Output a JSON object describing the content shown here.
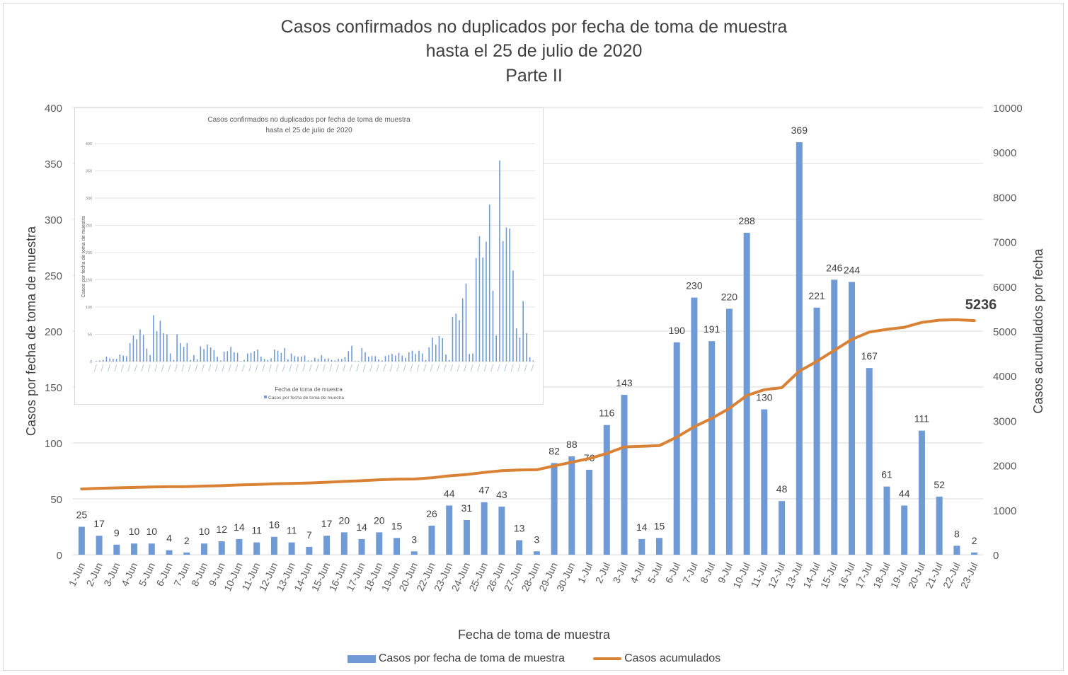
{
  "chart_data": {
    "type": "bar+line",
    "title": "Casos confirmados no duplicados por fecha de toma de muestra",
    "subtitle": "hasta el 25 de julio de 2020",
    "subtitle2": "Parte II",
    "xlabel": "Fecha de toma de muestra",
    "ylabel": "Casos por fecha de toma de muestra",
    "y2label": "Casos acumulados por fecha",
    "ylim": [
      0,
      400
    ],
    "y2lim": [
      0,
      10000
    ],
    "yticks": [
      "0",
      "50",
      "100",
      "150",
      "200",
      "250",
      "300",
      "350",
      "400"
    ],
    "y2ticks": [
      "0",
      "1000",
      "2000",
      "3000",
      "4000",
      "5000",
      "6000",
      "7000",
      "8000",
      "9000",
      "10000"
    ],
    "grid": true,
    "legend_position": "bottom",
    "categories": [
      "1-Jun",
      "2-Jun",
      "3-Jun",
      "4-Jun",
      "5-Jun",
      "6-Jun",
      "7-Jun",
      "8-Jun",
      "9-Jun",
      "10-Jun",
      "11-Jun",
      "12-Jun",
      "13-Jun",
      "14-Jun",
      "15-Jun",
      "16-Jun",
      "17-Jun",
      "18-Jun",
      "19-Jun",
      "20-Jun",
      "22-Jun",
      "23-Jun",
      "24-Jun",
      "25-Jun",
      "26-Jun",
      "27-Jun",
      "28-Jun",
      "29-Jun",
      "30-Jun",
      "1-Jul",
      "2-Jul",
      "3-Jul",
      "4-Jul",
      "5-Jul",
      "6-Jul",
      "7-Jul",
      "8-Jul",
      "9-Jul",
      "10-Jul",
      "11-Jul",
      "12-Jul",
      "13-Jul",
      "14-Jul",
      "15-Jul",
      "16-Jul",
      "17-Jul",
      "18-Jul",
      "19-Jul",
      "20-Jul",
      "21-Jul",
      "22-Jul",
      "23-Jul"
    ],
    "series": [
      {
        "name": "Casos por fecha de toma de muestra",
        "type": "bar",
        "axis": "left",
        "color": "#6f9ad5",
        "values": [
          25,
          17,
          9,
          10,
          10,
          4,
          2,
          10,
          12,
          14,
          11,
          16,
          11,
          7,
          17,
          20,
          14,
          20,
          15,
          3,
          26,
          44,
          31,
          47,
          43,
          13,
          3,
          82,
          88,
          76,
          116,
          143,
          14,
          15,
          190,
          230,
          191,
          220,
          288,
          130,
          48,
          369,
          221,
          246,
          244,
          167,
          61,
          44,
          111,
          52,
          8,
          2
        ]
      },
      {
        "name": "Casos acumulados",
        "type": "line",
        "axis": "right",
        "color": "#d98236",
        "values": [
          1470,
          1485,
          1495,
          1505,
          1515,
          1520,
          1522,
          1535,
          1545,
          1560,
          1570,
          1585,
          1595,
          1605,
          1620,
          1640,
          1655,
          1675,
          1690,
          1693,
          1720,
          1765,
          1795,
          1840,
          1880,
          1895,
          1900,
          1985,
          2070,
          2150,
          2265,
          2410,
          2425,
          2440,
          2630,
          2860,
          3050,
          3270,
          3560,
          3690,
          3735,
          4105,
          4325,
          4570,
          4815,
          4980,
          5040,
          5085,
          5195,
          5245,
          5255,
          5236
        ],
        "end_label": "5236"
      }
    ],
    "inset": {
      "title": "Casos confirmados no duplicados por fecha de toma de muestra",
      "subtitle": "hasta el 25 de julio de 2020",
      "ylabel": "Casos por fecha de toma de muestra",
      "xlabel": "Fecha de toma de muestra",
      "legend": "Casos por fecha de toma de muestra",
      "yticks": [
        "0",
        "50",
        "100",
        "150",
        "200",
        "250",
        "300",
        "350",
        "400"
      ],
      "ylim": [
        0,
        400
      ],
      "values": [
        1,
        2,
        3,
        9,
        6,
        5,
        5,
        13,
        11,
        10,
        34,
        48,
        41,
        59,
        49,
        24,
        12,
        85,
        56,
        75,
        52,
        50,
        15,
        3,
        50,
        34,
        27,
        34,
        3,
        12,
        4,
        28,
        23,
        31,
        26,
        21,
        9,
        2,
        18,
        19,
        27,
        17,
        16,
        1,
        3,
        15,
        16,
        19,
        22,
        9,
        5,
        3,
        6,
        22,
        20,
        16,
        25,
        4,
        15,
        10,
        9,
        9,
        11,
        2,
        2,
        7,
        5,
        12,
        5,
        6,
        3,
        2,
        5,
        5,
        8,
        19,
        29,
        1,
        1,
        25,
        17,
        9,
        10,
        10,
        4,
        2,
        10,
        12,
        14,
        11,
        16,
        11,
        7,
        17,
        20,
        14,
        20,
        15,
        3,
        26,
        44,
        31,
        47,
        43,
        13,
        3,
        82,
        88,
        76,
        116,
        143,
        14,
        15,
        190,
        230,
        191,
        220,
        288,
        130,
        48,
        369,
        221,
        246,
        244,
        167,
        61,
        44,
        111,
        52,
        8,
        2
      ]
    }
  }
}
